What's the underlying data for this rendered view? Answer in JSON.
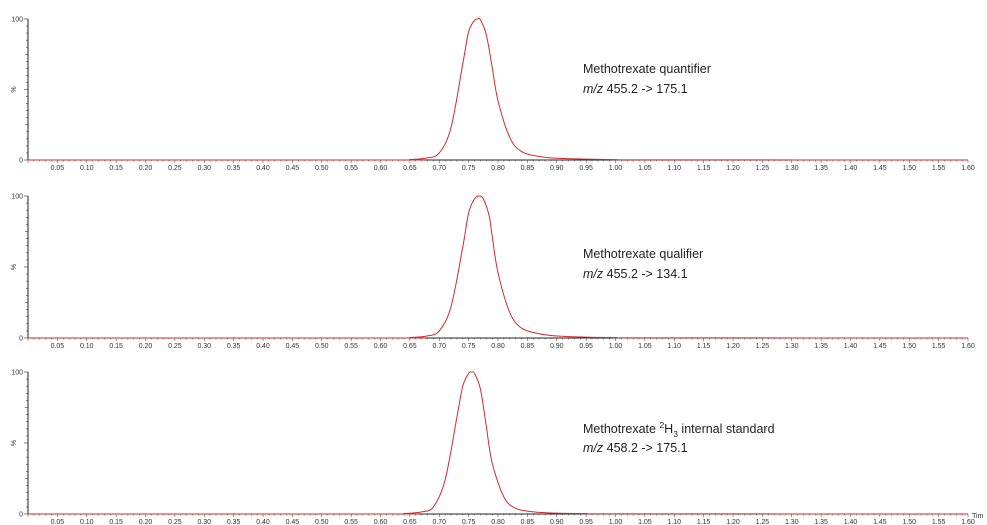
{
  "chart_data": [
    {
      "type": "line",
      "xlim": [
        0.0,
        1.6
      ],
      "ylim": [
        0,
        100
      ],
      "x_ticks": [
        "0.05",
        "0.10",
        "0.15",
        "0.20",
        "0.25",
        "0.30",
        "0.35",
        "0.40",
        "0.45",
        "0.50",
        "0.55",
        "0.60",
        "0.65",
        "0.70",
        "0.75",
        "0.80",
        "0.85",
        "0.90",
        "0.95",
        "1.00",
        "1.05",
        "1.10",
        "1.15",
        "1.20",
        "1.25",
        "1.30",
        "1.35",
        "1.40",
        "1.45",
        "1.50",
        "1.55",
        "1.60"
      ],
      "y_ticks": [
        "0",
        "100"
      ],
      "ylabel": "%",
      "xlabel": "",
      "annotation": {
        "line1": "Methotrexate quantifier",
        "mz_prefix": "m/z",
        "mz_text": "455.2 -> 175.1"
      },
      "peak": {
        "center": 0.765,
        "height": 100
      },
      "series": [
        {
          "color": "#d22a2a",
          "x": [
            0.0,
            0.62,
            0.65,
            0.68,
            0.7,
            0.72,
            0.74,
            0.75,
            0.76,
            0.765,
            0.77,
            0.78,
            0.79,
            0.8,
            0.82,
            0.84,
            0.87,
            0.9,
            0.95,
            1.0,
            1.05,
            1.6
          ],
          "y": [
            0,
            0,
            0.3,
            1.5,
            5,
            23,
            68,
            91,
            99,
            100,
            99.5,
            89,
            66,
            42,
            16,
            6,
            2.5,
            1.2,
            0.6,
            0.3,
            0.1,
            0
          ]
        }
      ]
    },
    {
      "type": "line",
      "xlim": [
        0.0,
        1.6
      ],
      "ylim": [
        0,
        100
      ],
      "x_ticks": [
        "0.05",
        "0.10",
        "0.15",
        "0.20",
        "0.25",
        "0.30",
        "0.35",
        "0.40",
        "0.45",
        "0.50",
        "0.55",
        "0.60",
        "0.65",
        "0.70",
        "0.75",
        "0.80",
        "0.85",
        "0.90",
        "0.95",
        "1.00",
        "1.05",
        "1.10",
        "1.15",
        "1.20",
        "1.25",
        "1.30",
        "1.35",
        "1.40",
        "1.45",
        "1.50",
        "1.55",
        "1.60"
      ],
      "y_ticks": [
        "0",
        "100"
      ],
      "ylabel": "%",
      "xlabel": "",
      "annotation": {
        "line1": "Methotrexate qualifier",
        "mz_prefix": "m/z",
        "mz_text": "455.2 -> 134.1"
      },
      "peak": {
        "center": 0.768,
        "height": 100
      },
      "series": [
        {
          "color": "#d22a2a",
          "x": [
            0.0,
            0.62,
            0.65,
            0.68,
            0.7,
            0.72,
            0.74,
            0.75,
            0.76,
            0.768,
            0.775,
            0.785,
            0.79,
            0.8,
            0.82,
            0.84,
            0.87,
            0.9,
            0.95,
            1.0,
            1.05,
            1.6
          ],
          "y": [
            0,
            0,
            0.3,
            1.5,
            5,
            22,
            64,
            88,
            98,
            100,
            98,
            86,
            72,
            46,
            18,
            7,
            3,
            1.4,
            0.6,
            0.3,
            0.1,
            0
          ]
        }
      ]
    },
    {
      "type": "line",
      "xlim": [
        0.0,
        1.6
      ],
      "ylim": [
        0,
        100
      ],
      "x_ticks": [
        "0.05",
        "0.10",
        "0.15",
        "0.20",
        "0.25",
        "0.30",
        "0.35",
        "0.40",
        "0.45",
        "0.50",
        "0.55",
        "0.60",
        "0.65",
        "0.70",
        "0.75",
        "0.80",
        "0.85",
        "0.90",
        "0.95",
        "1.00",
        "1.05",
        "1.10",
        "1.15",
        "1.20",
        "1.25",
        "1.30",
        "1.35",
        "1.40",
        "1.45",
        "1.50",
        "1.55",
        "1.60"
      ],
      "y_ticks": [
        "0",
        "100"
      ],
      "ylabel": "%",
      "xlabel": "Tim",
      "annotation": {
        "line1_pre": "Methotrexate ",
        "sup": "2",
        "h": "H",
        "sub": "3",
        "line1_post": " internal standard",
        "mz_prefix": "m/z",
        "mz_text": "458.2 -> 175.1"
      },
      "peak": {
        "center": 0.755,
        "height": 100
      },
      "series": [
        {
          "color": "#d22a2a",
          "x": [
            0.0,
            0.61,
            0.64,
            0.67,
            0.69,
            0.71,
            0.73,
            0.74,
            0.75,
            0.755,
            0.76,
            0.77,
            0.78,
            0.79,
            0.81,
            0.83,
            0.86,
            0.9,
            0.95,
            1.0,
            1.6
          ],
          "y": [
            0,
            0,
            0.3,
            1.5,
            5,
            24,
            68,
            90,
            99,
            100,
            99,
            88,
            62,
            36,
            12,
            4,
            1.5,
            0.6,
            0.3,
            0.1,
            0
          ]
        }
      ]
    }
  ]
}
